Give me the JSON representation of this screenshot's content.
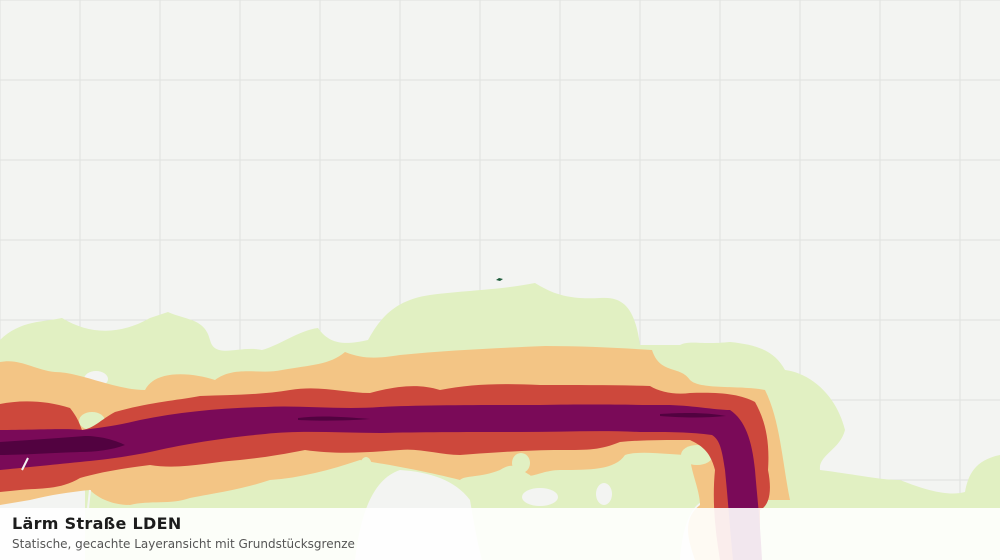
{
  "map": {
    "layer": "Lärm Straße LDEN",
    "colors": {
      "background": "#f3f4f2",
      "grid": "#dfe1df",
      "band_1": "#e1f0c2",
      "band_2": "#f3c585",
      "band_3": "#cd483c",
      "band_4": "#7a0a58",
      "band_5": "#520240",
      "parcel_marker": "#1f5c3c"
    }
  },
  "footer": {
    "title": "Lärm Straße LDEN",
    "subtitle": "Statische, gecachte Layeransicht mit Grundstücksgrenze"
  }
}
